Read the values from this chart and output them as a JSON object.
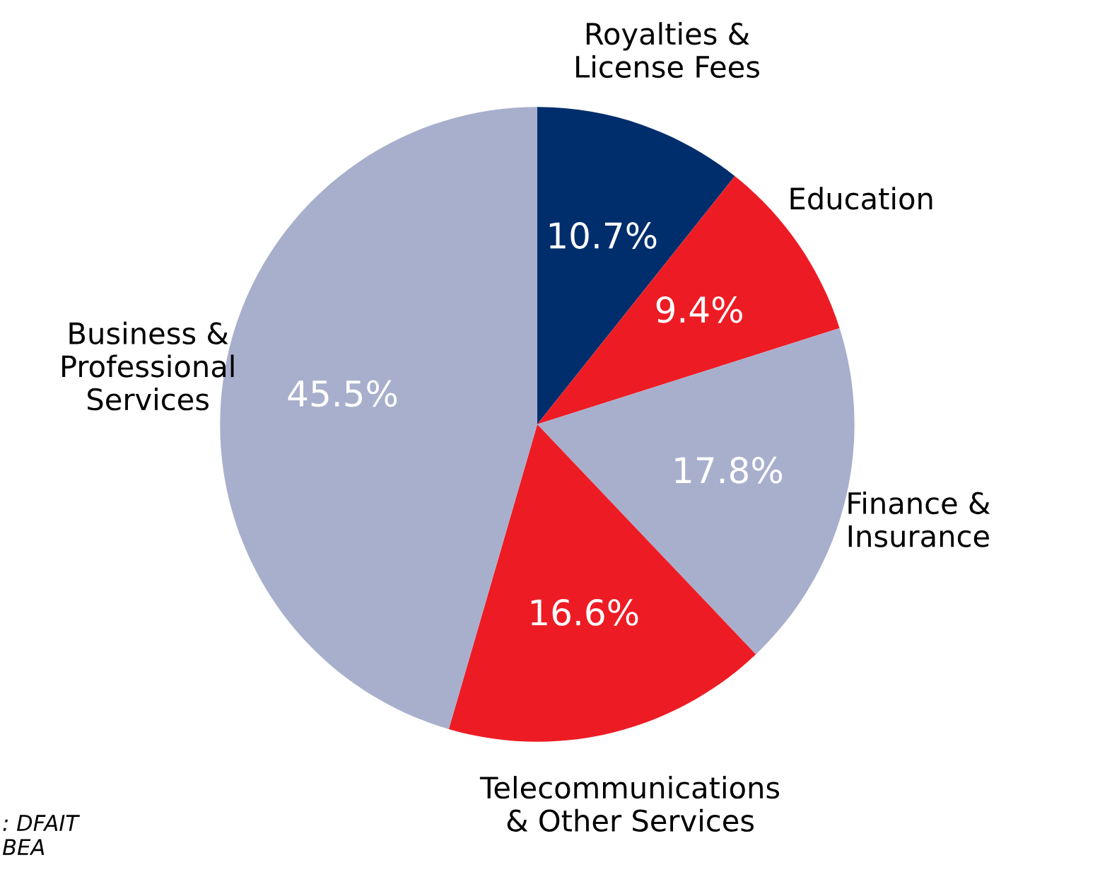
{
  "chart_data": {
    "type": "pie",
    "categories": [
      "Royalties &\nLicense Fees",
      "Education",
      "Finance &\nInsurance",
      "Telecommunications\n& Other Services",
      "Business &\nProfessional\nServices"
    ],
    "values": [
      10.7,
      9.4,
      17.8,
      16.6,
      45.5
    ],
    "colors": [
      "#002e6d",
      "#ed1c24",
      "#a8afcc",
      "#ed1c24",
      "#a8afcc"
    ],
    "value_labels": [
      "10.7%",
      "9.4%",
      "17.8%",
      "16.6%",
      "45.5%"
    ],
    "annotations": [
      ": DFAIT\nBEA"
    ]
  }
}
